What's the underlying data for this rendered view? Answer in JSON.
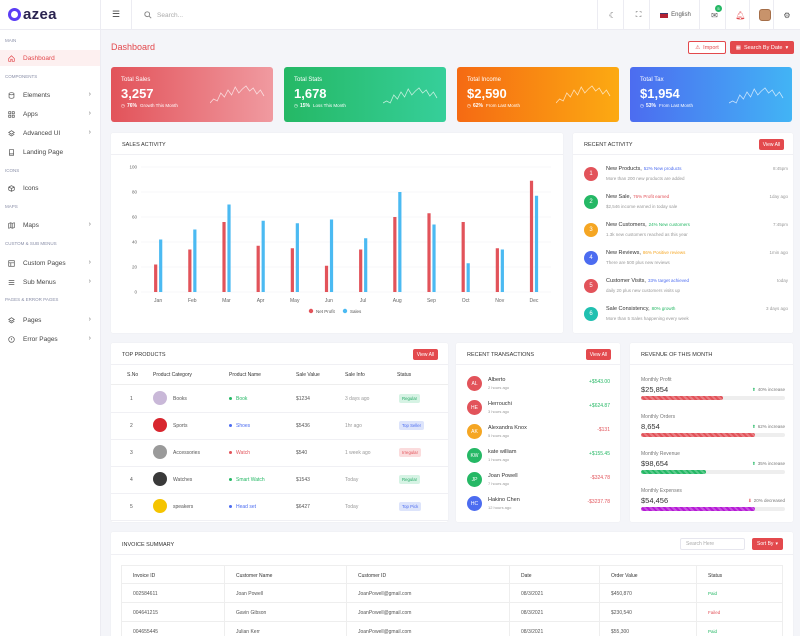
{
  "brand": {
    "name": "azea"
  },
  "sidebar": {
    "sections": [
      "MAIN",
      "COMPONENTS",
      "ICONS",
      "MAPS",
      "CUSTOM & SUB MENUS",
      "PAGES & ERROR PAGES"
    ],
    "items": [
      {
        "label": "Dashboard",
        "icon": "home-icon"
      },
      {
        "label": "Elements",
        "icon": "database-icon"
      },
      {
        "label": "Apps",
        "icon": "grid-icon"
      },
      {
        "label": "Advanced UI",
        "icon": "layers-icon"
      },
      {
        "label": "Landing Page",
        "icon": "book-icon"
      },
      {
        "label": "Icons",
        "icon": "box-icon"
      },
      {
        "label": "Maps",
        "icon": "map-icon"
      },
      {
        "label": "Custom Pages",
        "icon": "layout-icon"
      },
      {
        "label": "Sub Menus",
        "icon": "list-icon"
      },
      {
        "label": "Pages",
        "icon": "layers-icon"
      },
      {
        "label": "Error Pages",
        "icon": "alert-icon"
      }
    ]
  },
  "topbar": {
    "search_placeholder": "Search...",
    "language": "English",
    "mail_count": "5"
  },
  "page": {
    "title": "Dashboard",
    "import_label": "Import",
    "search_by_date": "Search By Date"
  },
  "stats": [
    {
      "label": "Total Sales",
      "value": "3,257",
      "pct": "76%",
      "note": "Growth This Month",
      "color_from": "#e2535a",
      "color_to": "#f09aa0"
    },
    {
      "label": "Total Stats",
      "value": "1,678",
      "pct": "15%",
      "note": "Loss This Month",
      "color_from": "#25b865",
      "color_to": "#36cf9a"
    },
    {
      "label": "Total Income",
      "value": "$2,590",
      "pct": "62%",
      "note": "From Last Month",
      "color_from": "#f56a13",
      "color_to": "#fcaa12"
    },
    {
      "label": "Total Tax",
      "value": "$1,954",
      "pct": "53%",
      "note": "From Last Month",
      "color_from": "#4c6cf0",
      "color_to": "#42b4f5"
    }
  ],
  "sales_activity": {
    "title": "SALES ACTIVITY",
    "chart_data": {
      "type": "bar",
      "categories": [
        "Jan",
        "Feb",
        "Mar",
        "Apr",
        "May",
        "Jun",
        "Jul",
        "Aug",
        "Sep",
        "Oct",
        "Nov",
        "Dec"
      ],
      "series": [
        {
          "name": "Net Profit",
          "color": "#e2535a",
          "values": [
            22,
            34,
            56,
            37,
            35,
            21,
            34,
            60,
            63,
            56,
            35,
            89
          ]
        },
        {
          "name": "Sales",
          "color": "#4bbaf2",
          "values": [
            42,
            50,
            70,
            57,
            55,
            58,
            43,
            80,
            54,
            23,
            34,
            77
          ]
        }
      ],
      "ylim": [
        0,
        100
      ],
      "yticks": [
        0,
        20,
        40,
        60,
        80,
        100
      ],
      "legend": "bottom"
    }
  },
  "recent_activity": {
    "title": "RECENT ACTIVITY",
    "view_all": "View All",
    "items": [
      {
        "num": "1",
        "color": "#e2535a",
        "title": "New Products,",
        "tag": "52% New products",
        "tag_color": "#4c6cf0",
        "desc": "More than 200 new products are added",
        "time": "8:45pm"
      },
      {
        "num": "2",
        "color": "#25b865",
        "title": "New Sale,",
        "tag": "76% Profit earned",
        "tag_color": "#e2535a",
        "desc": "$2,546 income earned in today sale",
        "time": "1day ago"
      },
      {
        "num": "3",
        "color": "#f5a623",
        "title": "New Customers,",
        "tag": "24% New customers",
        "tag_color": "#25b865",
        "desc": "1.3k new customers reached as this year",
        "time": "7:45pm"
      },
      {
        "num": "4",
        "color": "#4c6cf0",
        "title": "New Reviews,",
        "tag": "86% Positive reviews",
        "tag_color": "#f5a623",
        "desc": "There are 500 plus new reviews",
        "time": "1min ago"
      },
      {
        "num": "5",
        "color": "#e2535a",
        "title": "Customer Visits,",
        "tag": "33% target achieved",
        "tag_color": "#4c6cf0",
        "desc": "daily 20 plus new customers visits up",
        "time": "today"
      },
      {
        "num": "6",
        "color": "#20c0b0",
        "title": "Sale Consistency,",
        "tag": "80% growth",
        "tag_color": "#25b865",
        "desc": "More than 5 Sales happening every week",
        "time": "3 days ago"
      }
    ]
  },
  "top_products": {
    "title": "TOP PRODUCTS",
    "view_all": "View All",
    "headers": [
      "S.No",
      "Product Category",
      "Product Name",
      "Sale Value",
      "Sale Info",
      "Status"
    ],
    "rows": [
      {
        "no": "1",
        "category": "Books",
        "name": "Book",
        "dot": "#25b865",
        "value": "$1234",
        "info": "3 days ago",
        "status": "Regular",
        "status_bg": "#d6f3e4",
        "status_fg": "#25a865",
        "img": "#c9b8d8"
      },
      {
        "no": "2",
        "category": "Sports",
        "name": "Shoes",
        "dot": "#4c6cf0",
        "value": "$5436",
        "info": "1hr ago",
        "status": "Top Seller",
        "status_bg": "#dde4fb",
        "status_fg": "#4c6cf0",
        "img": "#d8262e"
      },
      {
        "no": "3",
        "category": "Accessories",
        "name": "Watch",
        "dot": "#e2535a",
        "value": "$540",
        "info": "1 week ago",
        "status": "Irregular",
        "status_bg": "#fbdcdd",
        "status_fg": "#e2535a",
        "img": "#9a9a9a"
      },
      {
        "no": "4",
        "category": "Watches",
        "name": "Smart Watch",
        "dot": "#25b865",
        "value": "$1543",
        "info": "Today",
        "status": "Regular",
        "status_bg": "#d6f3e4",
        "status_fg": "#25a865",
        "img": "#3a3a3a"
      },
      {
        "no": "5",
        "category": "speakers",
        "name": "Head set",
        "dot": "#4c6cf0",
        "value": "$6427",
        "info": "Today",
        "status": "Top Pick",
        "status_bg": "#dde4fb",
        "status_fg": "#4c6cf0",
        "img": "#f5c400"
      }
    ]
  },
  "recent_transactions": {
    "title": "RECENT TRANSACTIONS",
    "view_all": "View All",
    "items": [
      {
        "initials": "AL",
        "color": "#e2535a",
        "name": "Alberto",
        "time": "2 hours ago",
        "amount": "+$543.00",
        "amount_color": "#25b865"
      },
      {
        "initials": "HE",
        "color": "#e2535a",
        "name": "Herrouchi",
        "time": "3 hours ago",
        "amount": "+$624.87",
        "amount_color": "#25b865"
      },
      {
        "initials": "AK",
        "color": "#f5a623",
        "name": "Alexandra Knox",
        "time": "5 hours ago",
        "amount": "-$131",
        "amount_color": "#e2535a"
      },
      {
        "initials": "KW",
        "color": "#25b865",
        "name": "kate william",
        "time": "1 hours ago",
        "amount": "+$155.45",
        "amount_color": "#25b865"
      },
      {
        "initials": "JP",
        "color": "#25b865",
        "name": "Joan Powell",
        "time": "7 hours ago",
        "amount": "-$324.78",
        "amount_color": "#e2535a"
      },
      {
        "initials": "HC",
        "color": "#4c6cf0",
        "name": "Hakino Chen",
        "time": "12 hours ago",
        "amount": "-$3237.78",
        "amount_color": "#e2535a"
      }
    ]
  },
  "revenue": {
    "title": "REVENUE OF THIS MONTH",
    "items": [
      {
        "label": "Monthly Profit",
        "value": "$25,854",
        "change": "40% increase",
        "trend": "up",
        "fill": 0.57,
        "color": "#e2535a"
      },
      {
        "label": "Monthly Orders",
        "value": "8,654",
        "change": "62% increase",
        "trend": "up",
        "fill": 0.79,
        "color": "#e2535a"
      },
      {
        "label": "Monthly Revenue",
        "value": "$98,654",
        "change": "35% increase",
        "trend": "up",
        "fill": 0.45,
        "color": "#25b865"
      },
      {
        "label": "Monthly Expenses",
        "value": "$54,456",
        "change": "20% decreased",
        "trend": "down",
        "fill": 0.79,
        "color": "#b61ad6"
      }
    ]
  },
  "invoice": {
    "title": "INVOICE SUMMARY",
    "search_placeholder": "Search Here",
    "sort_label": "Sort By",
    "headers": [
      "Invoice ID",
      "Customer Name",
      "Customer ID",
      "Date",
      "Order Value",
      "Status"
    ],
    "rows": [
      {
        "id": "002584611",
        "name": "Joan Powell",
        "cid": "JoanPowell@gmail.com",
        "date": "08/3/2021",
        "value": "$450,870",
        "status": "Paid",
        "status_color": "#25b865"
      },
      {
        "id": "004641215",
        "name": "Gavin Gibson",
        "cid": "JoanPowell@gmail.com",
        "date": "08/3/2021",
        "value": "$230,540",
        "status": "Failed",
        "status_color": "#e2535a"
      },
      {
        "id": "004655445",
        "name": "Julian Kerr",
        "cid": "JoanPowell@gmail.com",
        "date": "08/3/2021",
        "value": "$55,300",
        "status": "Paid",
        "status_color": "#25b865"
      }
    ]
  }
}
